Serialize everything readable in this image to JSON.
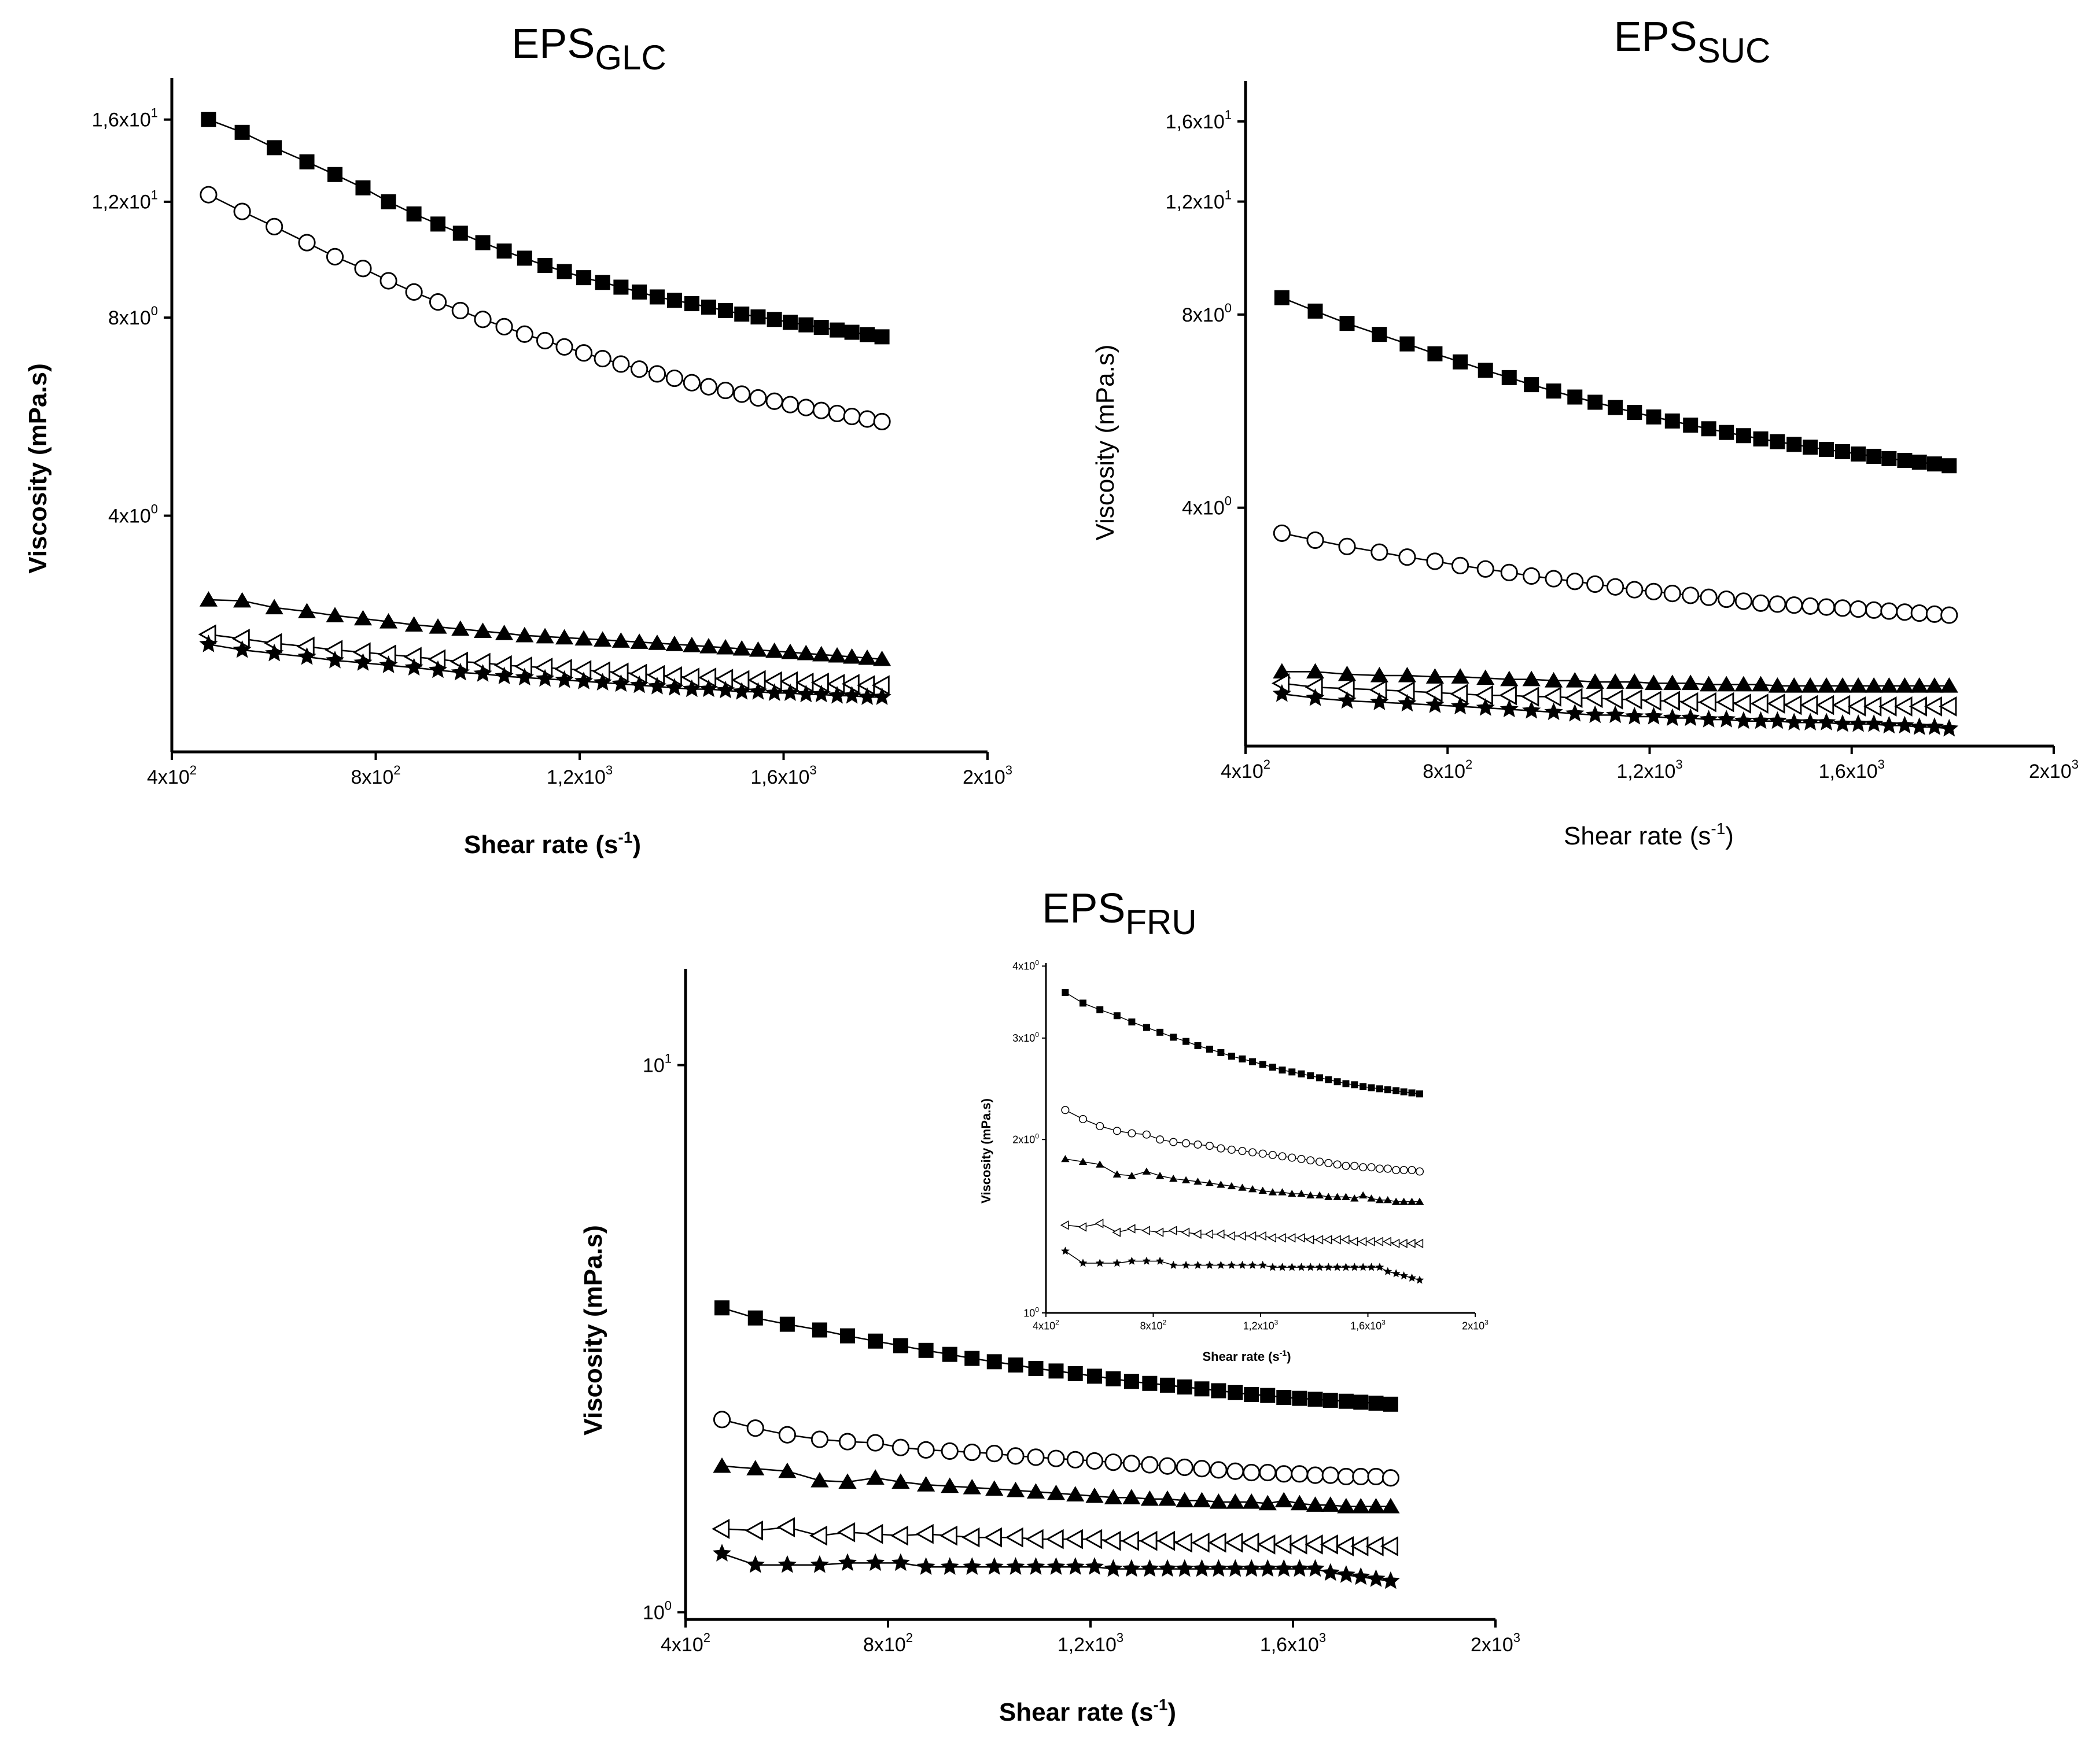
{
  "chart_data": [
    {
      "id": "glc",
      "type": "scatter",
      "title": "EPS",
      "title_sub": "GLC",
      "xlabel": "Shear rate (s",
      "xlabel_sup": "-1",
      "xlabel_close": ")",
      "ylabel": "Viscosity (mPa.s)",
      "xscale": "linear",
      "yscale": "log",
      "xlim": [
        400,
        2000
      ],
      "ylim": [
        1.75,
        18.5
      ],
      "xticks": [
        {
          "value": 400,
          "mant": "4x10",
          "exp": "2"
        },
        {
          "value": 800,
          "mant": "8x10",
          "exp": "2"
        },
        {
          "value": 1200,
          "mant": "1,2x10",
          "exp": "3"
        },
        {
          "value": 1600,
          "mant": "1,6x10",
          "exp": "3"
        },
        {
          "value": 2000,
          "mant": "2x10",
          "exp": "3"
        }
      ],
      "yticks": [
        {
          "value": 4,
          "mant": "4x10",
          "exp": "0"
        },
        {
          "value": 8,
          "mant": "8x10",
          "exp": "0"
        },
        {
          "value": 12,
          "mant": "1,2x10",
          "exp": "1"
        },
        {
          "value": 16,
          "mant": "1,6x10",
          "exp": "1"
        }
      ],
      "x": [
        472,
        538,
        601,
        665,
        720,
        775,
        825,
        875,
        922,
        966,
        1010,
        1052,
        1092,
        1132,
        1170,
        1208,
        1245,
        1281,
        1317,
        1352,
        1386,
        1420,
        1453,
        1486,
        1518,
        1550,
        1582,
        1613,
        1644,
        1674,
        1705,
        1734,
        1764,
        1793
      ],
      "series": [
        {
          "name": "series1",
          "marker": "square-filled",
          "values": [
            16.0,
            15.3,
            14.5,
            13.8,
            13.2,
            12.6,
            12.0,
            11.5,
            11.1,
            10.75,
            10.4,
            10.1,
            9.85,
            9.6,
            9.4,
            9.2,
            9.05,
            8.9,
            8.75,
            8.6,
            8.5,
            8.4,
            8.3,
            8.2,
            8.1,
            8.02,
            7.95,
            7.87,
            7.8,
            7.73,
            7.66,
            7.6,
            7.54,
            7.48
          ]
        },
        {
          "name": "series2",
          "marker": "circle-open",
          "values": [
            12.3,
            11.6,
            11.0,
            10.4,
            9.9,
            9.5,
            9.1,
            8.75,
            8.45,
            8.2,
            7.95,
            7.75,
            7.55,
            7.38,
            7.22,
            7.07,
            6.93,
            6.8,
            6.68,
            6.57,
            6.47,
            6.37,
            6.28,
            6.2,
            6.12,
            6.04,
            5.97,
            5.9,
            5.84,
            5.78,
            5.72,
            5.66,
            5.61,
            5.56
          ]
        },
        {
          "name": "series3",
          "marker": "triangle-filled",
          "values": [
            2.98,
            2.97,
            2.9,
            2.86,
            2.82,
            2.79,
            2.76,
            2.73,
            2.71,
            2.69,
            2.67,
            2.65,
            2.63,
            2.62,
            2.61,
            2.6,
            2.59,
            2.58,
            2.57,
            2.56,
            2.55,
            2.54,
            2.53,
            2.52,
            2.51,
            2.5,
            2.49,
            2.48,
            2.47,
            2.46,
            2.45,
            2.44,
            2.43,
            2.42
          ]
        },
        {
          "name": "series4",
          "marker": "triangle-left-open",
          "values": [
            2.64,
            2.6,
            2.56,
            2.53,
            2.5,
            2.48,
            2.46,
            2.44,
            2.42,
            2.4,
            2.39,
            2.37,
            2.36,
            2.35,
            2.34,
            2.33,
            2.32,
            2.31,
            2.3,
            2.29,
            2.28,
            2.27,
            2.27,
            2.26,
            2.25,
            2.25,
            2.24,
            2.24,
            2.23,
            2.23,
            2.22,
            2.22,
            2.21,
            2.21
          ]
        },
        {
          "name": "series5",
          "marker": "star-filled",
          "values": [
            2.55,
            2.5,
            2.47,
            2.44,
            2.41,
            2.39,
            2.37,
            2.35,
            2.33,
            2.31,
            2.3,
            2.28,
            2.27,
            2.26,
            2.25,
            2.24,
            2.23,
            2.22,
            2.21,
            2.2,
            2.19,
            2.18,
            2.18,
            2.17,
            2.16,
            2.16,
            2.15,
            2.15,
            2.14,
            2.14,
            2.13,
            2.13,
            2.12,
            2.12
          ]
        }
      ]
    },
    {
      "id": "suc",
      "type": "scatter",
      "title": "EPS",
      "title_sub": "SUC",
      "xlabel": "Shear rate (s",
      "xlabel_sup": "-1",
      "xlabel_close": ")",
      "ylabel": "Viscosity (mPa.s)",
      "xscale": "linear",
      "yscale": "log",
      "xlim": [
        400,
        2000
      ],
      "ylim": [
        1.7,
        18.5
      ],
      "xticks": [
        {
          "value": 400,
          "mant": "4x10",
          "exp": "2"
        },
        {
          "value": 800,
          "mant": "8x10",
          "exp": "2"
        },
        {
          "value": 1200,
          "mant": "1,2x10",
          "exp": "3"
        },
        {
          "value": 1600,
          "mant": "1,6x10",
          "exp": "3"
        },
        {
          "value": 2000,
          "mant": "2x10",
          "exp": "3"
        }
      ],
      "yticks": [
        {
          "value": 4,
          "mant": "4x10",
          "exp": "0"
        },
        {
          "value": 8,
          "mant": "8x10",
          "exp": "0"
        },
        {
          "value": 12,
          "mant": "1,2x10",
          "exp": "1"
        },
        {
          "value": 16,
          "mant": "1,6x10",
          "exp": "1"
        }
      ],
      "x": [
        472,
        538,
        601,
        665,
        720,
        775,
        825,
        875,
        922,
        966,
        1010,
        1052,
        1092,
        1132,
        1170,
        1208,
        1245,
        1281,
        1317,
        1352,
        1386,
        1420,
        1453,
        1486,
        1518,
        1550,
        1582,
        1613,
        1644,
        1674,
        1705,
        1734,
        1764,
        1793
      ],
      "series": [
        {
          "name": "series1",
          "marker": "square-filled",
          "values": [
            8.5,
            8.1,
            7.75,
            7.45,
            7.2,
            6.95,
            6.75,
            6.55,
            6.38,
            6.22,
            6.08,
            5.95,
            5.84,
            5.73,
            5.63,
            5.54,
            5.46,
            5.38,
            5.31,
            5.24,
            5.18,
            5.12,
            5.07,
            5.02,
            4.97,
            4.93,
            4.89,
            4.85,
            4.81,
            4.77,
            4.74,
            4.71,
            4.68,
            4.65
          ]
        },
        {
          "name": "series2",
          "marker": "circle-open",
          "values": [
            3.65,
            3.56,
            3.48,
            3.41,
            3.35,
            3.3,
            3.25,
            3.21,
            3.17,
            3.13,
            3.1,
            3.07,
            3.04,
            3.01,
            2.98,
            2.96,
            2.94,
            2.92,
            2.9,
            2.88,
            2.86,
            2.84,
            2.83,
            2.82,
            2.81,
            2.8,
            2.79,
            2.78,
            2.77,
            2.76,
            2.75,
            2.74,
            2.73,
            2.72
          ]
        },
        {
          "name": "series3",
          "marker": "triangle-filled",
          "values": [
            2.22,
            2.22,
            2.2,
            2.19,
            2.19,
            2.18,
            2.18,
            2.17,
            2.16,
            2.16,
            2.15,
            2.15,
            2.14,
            2.14,
            2.14,
            2.13,
            2.13,
            2.13,
            2.12,
            2.12,
            2.12,
            2.12,
            2.11,
            2.11,
            2.11,
            2.11,
            2.11,
            2.11,
            2.11,
            2.11,
            2.11,
            2.11,
            2.11,
            2.11
          ]
        },
        {
          "name": "series4",
          "marker": "triangle-left-open",
          "values": [
            2.13,
            2.1,
            2.09,
            2.08,
            2.07,
            2.06,
            2.05,
            2.04,
            2.04,
            2.03,
            2.03,
            2.02,
            2.02,
            2.01,
            2.01,
            2.0,
            2.0,
            1.99,
            1.99,
            1.99,
            1.98,
            1.98,
            1.98,
            1.97,
            1.97,
            1.97,
            1.97,
            1.96,
            1.96,
            1.96,
            1.96,
            1.96,
            1.96,
            1.96
          ]
        },
        {
          "name": "series5",
          "marker": "star-filled",
          "values": [
            2.05,
            2.02,
            2.0,
            1.99,
            1.98,
            1.97,
            1.96,
            1.95,
            1.94,
            1.93,
            1.92,
            1.91,
            1.9,
            1.9,
            1.89,
            1.89,
            1.88,
            1.88,
            1.87,
            1.87,
            1.86,
            1.86,
            1.86,
            1.85,
            1.85,
            1.85,
            1.84,
            1.84,
            1.84,
            1.83,
            1.83,
            1.82,
            1.82,
            1.81
          ]
        }
      ]
    },
    {
      "id": "fru",
      "type": "scatter",
      "title": "EPS",
      "title_sub": "FRU",
      "xlabel": "Shear rate (s",
      "xlabel_sup": "-1",
      "xlabel_close": ")",
      "ylabel": "Viscosity (mPa.s)",
      "xscale": "linear",
      "yscale": "log",
      "xlim": [
        400,
        2000
      ],
      "ylim": [
        0.97,
        15
      ],
      "xticks": [
        {
          "value": 400,
          "mant": "4x10",
          "exp": "2"
        },
        {
          "value": 800,
          "mant": "8x10",
          "exp": "2"
        },
        {
          "value": 1200,
          "mant": "1,2x10",
          "exp": "3"
        },
        {
          "value": 1600,
          "mant": "1,6x10",
          "exp": "3"
        },
        {
          "value": 2000,
          "mant": "2x10",
          "exp": "3"
        }
      ],
      "yticks": [
        {
          "value": 1,
          "mant": "10",
          "exp": "0"
        },
        {
          "value": 10,
          "mant": "10",
          "exp": "1"
        }
      ],
      "x": [
        472,
        538,
        601,
        665,
        720,
        775,
        825,
        875,
        922,
        966,
        1010,
        1052,
        1092,
        1132,
        1170,
        1208,
        1245,
        1281,
        1317,
        1352,
        1386,
        1420,
        1453,
        1486,
        1518,
        1550,
        1582,
        1613,
        1644,
        1674,
        1705,
        1734,
        1764,
        1793
      ],
      "series": [
        {
          "name": "series1",
          "marker": "square-filled",
          "values": [
            3.6,
            3.45,
            3.36,
            3.28,
            3.2,
            3.13,
            3.07,
            3.01,
            2.96,
            2.91,
            2.87,
            2.83,
            2.79,
            2.76,
            2.73,
            2.7,
            2.67,
            2.64,
            2.62,
            2.6,
            2.58,
            2.56,
            2.54,
            2.52,
            2.5,
            2.49,
            2.47,
            2.46,
            2.45,
            2.44,
            2.43,
            2.42,
            2.41,
            2.4
          ]
        },
        {
          "name": "series2",
          "marker": "circle-open",
          "values": [
            2.25,
            2.17,
            2.11,
            2.07,
            2.05,
            2.04,
            2.0,
            1.98,
            1.97,
            1.96,
            1.95,
            1.93,
            1.92,
            1.91,
            1.9,
            1.89,
            1.88,
            1.87,
            1.86,
            1.85,
            1.84,
            1.83,
            1.82,
            1.81,
            1.8,
            1.8,
            1.79,
            1.79,
            1.78,
            1.78,
            1.77,
            1.77,
            1.77,
            1.76
          ]
        },
        {
          "name": "series3",
          "marker": "triangle-filled",
          "values": [
            1.85,
            1.83,
            1.81,
            1.74,
            1.73,
            1.76,
            1.73,
            1.71,
            1.7,
            1.69,
            1.68,
            1.67,
            1.66,
            1.65,
            1.64,
            1.63,
            1.62,
            1.62,
            1.61,
            1.61,
            1.6,
            1.6,
            1.59,
            1.59,
            1.59,
            1.58,
            1.6,
            1.58,
            1.57,
            1.57,
            1.56,
            1.56,
            1.56,
            1.56
          ]
        },
        {
          "name": "series4",
          "marker": "triangle-left-open",
          "values": [
            1.42,
            1.41,
            1.43,
            1.38,
            1.4,
            1.39,
            1.38,
            1.39,
            1.38,
            1.37,
            1.37,
            1.37,
            1.36,
            1.36,
            1.36,
            1.36,
            1.35,
            1.35,
            1.35,
            1.35,
            1.34,
            1.34,
            1.34,
            1.34,
            1.34,
            1.33,
            1.33,
            1.33,
            1.33,
            1.33,
            1.32,
            1.32,
            1.32,
            1.32
          ]
        },
        {
          "name": "series5",
          "marker": "star-filled",
          "values": [
            1.28,
            1.22,
            1.22,
            1.22,
            1.23,
            1.23,
            1.23,
            1.21,
            1.21,
            1.21,
            1.21,
            1.21,
            1.21,
            1.21,
            1.21,
            1.21,
            1.2,
            1.2,
            1.2,
            1.2,
            1.2,
            1.2,
            1.2,
            1.2,
            1.2,
            1.2,
            1.2,
            1.2,
            1.2,
            1.18,
            1.17,
            1.16,
            1.15,
            1.14
          ]
        }
      ],
      "inset": {
        "xlabel": "Shear rate (s",
        "xlabel_sup": "-1",
        "xlabel_close": ")",
        "ylabel": "Viscosity (mPa.s)",
        "xscale": "linear",
        "yscale": "log",
        "xlim": [
          400,
          2000
        ],
        "ylim": [
          1.0,
          4.05
        ],
        "xticks": [
          {
            "value": 400,
            "mant": "4x10",
            "exp": "2"
          },
          {
            "value": 800,
            "mant": "8x10",
            "exp": "2"
          },
          {
            "value": 1200,
            "mant": "1,2x10",
            "exp": "3"
          },
          {
            "value": 1600,
            "mant": "1,6x10",
            "exp": "3"
          },
          {
            "value": 2000,
            "mant": "2x10",
            "exp": "3"
          }
        ],
        "yticks": [
          {
            "value": 1,
            "mant": "10",
            "exp": "0"
          },
          {
            "value": 2,
            "mant": "2x10",
            "exp": "0"
          },
          {
            "value": 3,
            "mant": "3x10",
            "exp": "0"
          },
          {
            "value": 4,
            "mant": "4x10",
            "exp": "0"
          }
        ]
      }
    }
  ]
}
